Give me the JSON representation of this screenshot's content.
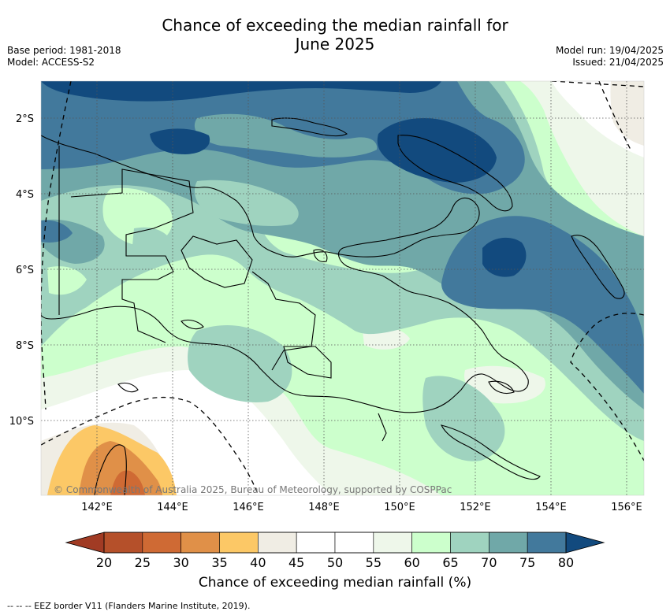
{
  "title_line1": "Chance of exceeding the median rainfall for",
  "title_line2": "June 2025",
  "meta_left": [
    "Base period: 1981-2018",
    "Model: ACCESS-S2"
  ],
  "meta_right": [
    "Model run: 19/04/2025",
    "Issued: 21/04/2025"
  ],
  "lat_labels": [
    "2°S",
    "4°S",
    "6°S",
    "8°S",
    "10°S"
  ],
  "lon_labels": [
    "142°E",
    "144°E",
    "146°E",
    "148°E",
    "150°E",
    "152°E",
    "154°E",
    "156°E"
  ],
  "copyright": "© Commonwealth of Australia 2025, Bureau of Meteorology, supported by COSPPac",
  "colorbar": {
    "ticks": [
      "20",
      "25",
      "30",
      "35",
      "40",
      "45",
      "50",
      "55",
      "60",
      "65",
      "70",
      "75",
      "80"
    ],
    "colors": [
      "#b5502a",
      "#cf6a34",
      "#e09048",
      "#fcc866",
      "#f0ede4",
      "#ffffff",
      "#ffffff",
      "#eef7ea",
      "#ccffcc",
      "#9fd3bf",
      "#70a8a8",
      "#42799c"
    ],
    "low_end_color": "#a13b24",
    "high_end_color": "#124a7e",
    "label": "Chance of exceeding median rainfall (%)"
  },
  "footnote": "-- -- -- EEZ border V11 (Flanders Marine Institute, 2019)."
}
